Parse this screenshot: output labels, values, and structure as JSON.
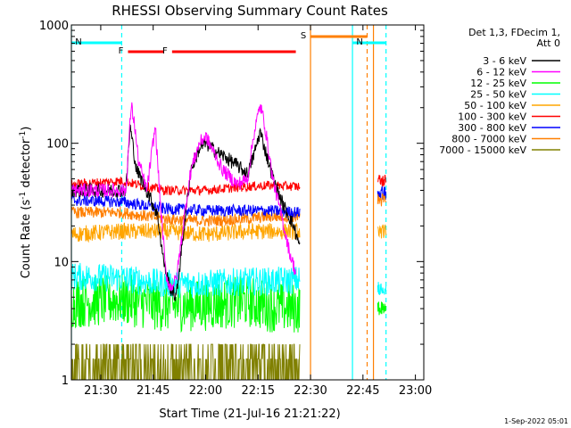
{
  "chart_data": {
    "type": "line",
    "title": "RHESSI Observing Summary Count Rates",
    "xlabel": "Start Time (21-Jul-16 21:21:22)",
    "ylabel_main": "Count Rate (s",
    "ylabel_sup1": "-1",
    "ylabel_mid": " detector",
    "ylabel_sup2": "-1",
    "ylabel_end": ")",
    "y_scale": "log",
    "ylim": [
      1,
      1000
    ],
    "xlim_hours": [
      21.36,
      23.04
    ],
    "x_ticks": [
      {
        "h": 21.5,
        "label": "21:30"
      },
      {
        "h": 21.75,
        "label": "21:45"
      },
      {
        "h": 22.0,
        "label": "22:00"
      },
      {
        "h": 22.25,
        "label": "22:15"
      },
      {
        "h": 22.5,
        "label": "22:30"
      },
      {
        "h": 22.75,
        "label": "22:45"
      },
      {
        "h": 23.0,
        "label": "23:00"
      }
    ],
    "y_ticks": [
      {
        "v": 1,
        "label": "1"
      },
      {
        "v": 10,
        "label": "10"
      },
      {
        "v": 100,
        "label": "100"
      },
      {
        "v": 1000,
        "label": "1000"
      }
    ],
    "legend_header": [
      "Det 1,3, FDecim 1,",
      "Att 0"
    ],
    "series": [
      {
        "name": "3 - 6 keV",
        "color": "#000000",
        "points": [
          [
            21.36,
            40
          ],
          [
            21.62,
            40
          ],
          [
            21.64,
            140
          ],
          [
            21.67,
            60
          ],
          [
            21.72,
            40
          ],
          [
            21.77,
            25
          ],
          [
            21.8,
            10
          ],
          [
            21.83,
            6
          ],
          [
            21.86,
            5
          ],
          [
            21.89,
            15
          ],
          [
            21.93,
            60
          ],
          [
            21.97,
            90
          ],
          [
            22.0,
            100
          ],
          [
            22.05,
            85
          ],
          [
            22.1,
            75
          ],
          [
            22.15,
            65
          ],
          [
            22.2,
            55
          ],
          [
            22.23,
            80
          ],
          [
            22.26,
            125
          ],
          [
            22.29,
            80
          ],
          [
            22.33,
            45
          ],
          [
            22.37,
            30
          ],
          [
            22.42,
            20
          ],
          [
            22.45,
            13
          ]
        ]
      },
      {
        "name": "6 - 12 keV",
        "color": "#ff00ff",
        "points": [
          [
            21.36,
            40
          ],
          [
            21.62,
            40
          ],
          [
            21.645,
            210
          ],
          [
            21.66,
            150
          ],
          [
            21.68,
            70
          ],
          [
            21.72,
            40
          ],
          [
            21.76,
            140
          ],
          [
            21.78,
            40
          ],
          [
            21.81,
            8
          ],
          [
            21.83,
            6
          ],
          [
            21.86,
            7
          ],
          [
            21.9,
            25
          ],
          [
            21.93,
            60
          ],
          [
            21.97,
            100
          ],
          [
            22.0,
            115
          ],
          [
            22.03,
            90
          ],
          [
            22.08,
            60
          ],
          [
            22.15,
            45
          ],
          [
            22.2,
            50
          ],
          [
            22.23,
            120
          ],
          [
            22.26,
            210
          ],
          [
            22.28,
            150
          ],
          [
            22.32,
            50
          ],
          [
            22.36,
            25
          ],
          [
            22.4,
            12
          ],
          [
            22.43,
            8
          ]
        ]
      },
      {
        "name": "12 - 25 keV",
        "color": "#00ff00",
        "points": [
          [
            21.36,
            4.5
          ],
          [
            21.6,
            4.8
          ],
          [
            21.8,
            4.2
          ],
          [
            22.0,
            4.3
          ],
          [
            22.2,
            4.6
          ],
          [
            22.3,
            4.2
          ],
          [
            22.45,
            4.0
          ]
        ]
      },
      {
        "name": "25 - 50 keV",
        "color": "#00ffff",
        "points": [
          [
            21.36,
            7.5
          ],
          [
            21.6,
            7.2
          ],
          [
            21.8,
            6.5
          ],
          [
            22.0,
            6.5
          ],
          [
            22.2,
            6.8
          ],
          [
            22.3,
            6.8
          ],
          [
            22.45,
            7.0
          ]
        ]
      },
      {
        "name": "50 - 100 keV",
        "color": "#ffa500",
        "points": [
          [
            21.36,
            17
          ],
          [
            21.6,
            18
          ],
          [
            21.8,
            18
          ],
          [
            22.0,
            17
          ],
          [
            22.2,
            18
          ],
          [
            22.3,
            18
          ],
          [
            22.45,
            18
          ]
        ]
      },
      {
        "name": "100 - 300 keV",
        "color": "#ff0000",
        "points": [
          [
            21.36,
            45
          ],
          [
            21.6,
            48
          ],
          [
            21.8,
            40
          ],
          [
            22.0,
            40
          ],
          [
            22.2,
            43
          ],
          [
            22.3,
            44
          ],
          [
            22.45,
            43
          ]
        ]
      },
      {
        "name": "300 - 800 keV",
        "color": "#0000ff",
        "points": [
          [
            21.36,
            33
          ],
          [
            21.6,
            32
          ],
          [
            21.8,
            28
          ],
          [
            22.0,
            27
          ],
          [
            22.2,
            27
          ],
          [
            22.3,
            27
          ],
          [
            22.45,
            26
          ]
        ]
      },
      {
        "name": "800 - 7000 keV",
        "color": "#ff7f00",
        "points": [
          [
            21.36,
            26
          ],
          [
            21.6,
            26
          ],
          [
            21.8,
            23
          ],
          [
            22.0,
            22
          ],
          [
            22.2,
            23
          ],
          [
            22.3,
            24
          ],
          [
            22.45,
            24
          ]
        ]
      },
      {
        "name": "7000 - 15000 keV",
        "color": "#808000",
        "points": [
          [
            21.36,
            1.7
          ],
          [
            21.6,
            1.7
          ],
          [
            21.8,
            1.8
          ],
          [
            22.0,
            1.6
          ],
          [
            22.2,
            1.7
          ],
          [
            22.3,
            1.7
          ],
          [
            22.45,
            1.7
          ]
        ]
      }
    ],
    "segment2": [
      {
        "name": "100 - 300 keV",
        "color": "#ff0000",
        "value": 48
      },
      {
        "name": "300 - 800 keV",
        "color": "#0000ff",
        "value": 38
      },
      {
        "name": "800 - 7000 keV",
        "color": "#ff7f00",
        "value": 33
      },
      {
        "name": "50 - 100 keV",
        "color": "#ffa500",
        "value": 18
      },
      {
        "name": "25 - 50 keV",
        "color": "#00ffff",
        "value": 6
      },
      {
        "name": "12 - 25 keV",
        "color": "#00ff00",
        "value": 4
      }
    ],
    "segment2_hours": [
      22.82,
      22.86
    ],
    "flag_bars": [
      {
        "label": "N",
        "color": "#00ffff",
        "start": 21.36,
        "end": 21.6
      },
      {
        "label": "N",
        "color": "#00ffff",
        "start": 22.7,
        "end": 22.86
      },
      {
        "label": "F",
        "color": "#ff0000",
        "start": 21.63,
        "end": 21.8
      },
      {
        "label": "F",
        "color": "#ff0000",
        "start": 21.84,
        "end": 22.43
      },
      {
        "label": "S",
        "color": "#ff7f00",
        "start": 22.5,
        "end": 22.77
      }
    ],
    "vertical_lines": [
      {
        "h": 21.36,
        "color": "#00ffff",
        "style": "solid"
      },
      {
        "h": 21.6,
        "color": "#00ffff",
        "style": "dashed"
      },
      {
        "h": 22.5,
        "color": "#ff7f00",
        "style": "solid"
      },
      {
        "h": 22.7,
        "color": "#00ffff",
        "style": "solid"
      },
      {
        "h": 22.77,
        "color": "#ff7f00",
        "style": "dashed"
      },
      {
        "h": 22.8,
        "color": "#ff7f00",
        "style": "solid"
      },
      {
        "h": 22.86,
        "color": "#00ffff",
        "style": "dashed"
      }
    ],
    "timestamp": "1-Sep-2022 05:01"
  }
}
